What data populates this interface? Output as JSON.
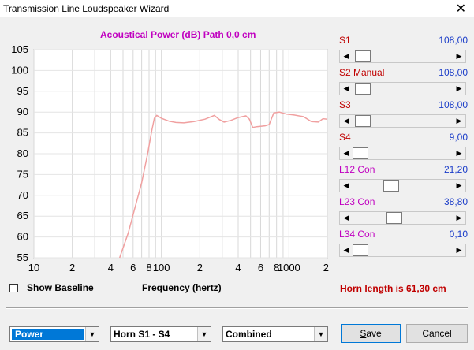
{
  "window": {
    "title": "Transmission Line Loudspeaker Wizard"
  },
  "chart_data": {
    "type": "line",
    "title": "Acoustical Power (dB)   Path 0,0 cm",
    "xlabel": "Frequency (hertz)",
    "ylabel": "",
    "x_scale": "log",
    "xlim": [
      10,
      2000
    ],
    "ylim": [
      55,
      105
    ],
    "yticks": [
      "105",
      "100",
      "95",
      "90",
      "85",
      "80",
      "75",
      "70",
      "65",
      "60",
      "55"
    ],
    "xticks": [
      "10",
      "2",
      "4",
      "6",
      "8",
      "100",
      "2",
      "4",
      "6",
      "8",
      "1000",
      "2"
    ],
    "grid": true,
    "line_color": "#f0a0a0",
    "x": [
      47,
      55,
      62,
      70,
      78,
      84,
      88,
      92,
      100,
      115,
      130,
      150,
      180,
      220,
      260,
      285,
      310,
      350,
      400,
      460,
      490,
      520,
      560,
      600,
      650,
      700,
      760,
      840,
      960,
      1100,
      1300,
      1500,
      1700,
      1850,
      2000
    ],
    "y": [
      55,
      61,
      67,
      73,
      80,
      85.5,
      88.5,
      89.2,
      88.5,
      87.8,
      87.5,
      87.4,
      87.7,
      88.3,
      89.2,
      88.2,
      87.6,
      88.0,
      88.7,
      89.1,
      88.3,
      86.3,
      86.5,
      86.6,
      86.7,
      87.0,
      89.8,
      90.0,
      89.5,
      89.3,
      88.9,
      87.7,
      87.6,
      88.4,
      88.3
    ]
  },
  "sliders": [
    {
      "label": "S1",
      "value": "108,00",
      "label_color": "#c00000",
      "fraction": 0.03
    },
    {
      "label": "S2  Manual",
      "value": "108,00",
      "label_color": "#c00000",
      "fraction": 0.03
    },
    {
      "label": "S3",
      "value": "108,00",
      "label_color": "#c00000",
      "fraction": 0.03
    },
    {
      "label": "S4",
      "value": "9,00",
      "label_color": "#c00000",
      "fraction": 0.0
    },
    {
      "label": "L12  Con",
      "value": "21,20",
      "label_color": "#c000c0",
      "fraction": 0.36
    },
    {
      "label": "L23  Con",
      "value": "38,80",
      "label_color": "#c000c0",
      "fraction": 0.4
    },
    {
      "label": "L34  Con",
      "value": "0,10",
      "label_color": "#c000c0",
      "fraction": 0.0
    }
  ],
  "options": {
    "show_baseline_label_pre": "Sho",
    "show_baseline_label_accel": "w",
    "show_baseline_label_post": " Baseline",
    "show_baseline_checked": false
  },
  "horn_length_text": "Horn length is 61,30 cm",
  "combos": {
    "display": "Power",
    "horn_range": "Horn S1 - S4",
    "mode": "Combined"
  },
  "buttons": {
    "save_accel": "S",
    "save_rest": "ave",
    "cancel": "Cancel"
  },
  "icons": {
    "close": "close-icon",
    "arrow_left": "arrow-left-icon",
    "arrow_right": "arrow-right-icon",
    "dropdown": "chevron-down-icon"
  }
}
